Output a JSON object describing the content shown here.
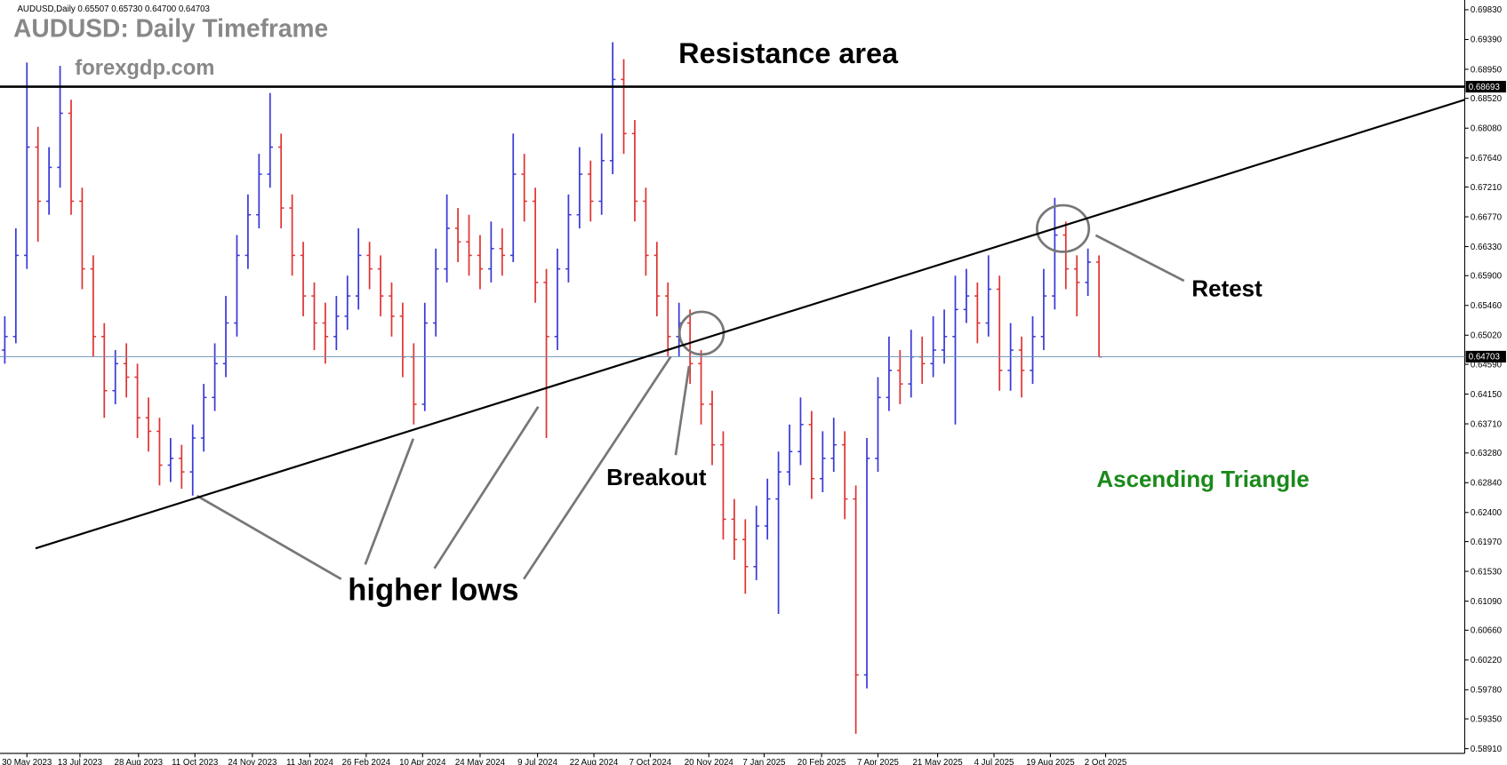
{
  "chart_data": {
    "type": "ohlc",
    "info": "AUDUSD,Daily 0.65507 0.65730 0.64700 0.64703",
    "title": "AUDUSD: Daily Timeframe",
    "subtitle": "forexgdp.com",
    "annotations": {
      "resistance": "Resistance area",
      "retest": "Retest",
      "breakout": "Breakout",
      "higher_lows": "higher lows",
      "pattern": "Ascending Triangle"
    },
    "up_color": "#3a3ad8",
    "down_color": "#e03434",
    "resistance_level": {
      "value": 0.68693,
      "label": "0.68693"
    },
    "current_price": {
      "value": 0.64703,
      "label": "0.64703"
    },
    "trendline": {
      "start": [
        2.78,
        0.6187
      ],
      "end": [
        132.09,
        0.685
      ]
    },
    "xlim": [
      -0.435,
      132.09
    ],
    "ylim": [
      0.5884,
      0.69974
    ],
    "xticks": [
      {
        "value": 2,
        "label": "30 May 2023"
      },
      {
        "value": 6.8,
        "label": "13 Jul 2023"
      },
      {
        "value": 12.1,
        "label": "28 Aug 2023"
      },
      {
        "value": 17.2,
        "label": "11 Oct 2023"
      },
      {
        "value": 22.4,
        "label": "24 Nov 2023"
      },
      {
        "value": 27.6,
        "label": "11 Jan 2024"
      },
      {
        "value": 32.7,
        "label": "26 Feb 2024"
      },
      {
        "value": 37.8,
        "label": "10 Apr 2024"
      },
      {
        "value": 43,
        "label": "24 May 2024"
      },
      {
        "value": 48.2,
        "label": "9 Jul 2024"
      },
      {
        "value": 53.3,
        "label": "22 Aug 2024"
      },
      {
        "value": 58.4,
        "label": "7 Oct 2024"
      },
      {
        "value": 63.7,
        "label": "20 Nov 2024"
      },
      {
        "value": 68.7,
        "label": "7 Jan 2025"
      },
      {
        "value": 73.9,
        "label": "20 Feb 2025"
      },
      {
        "value": 79,
        "label": "7 Apr 2025"
      },
      {
        "value": 84.4,
        "label": "21 May 2025"
      },
      {
        "value": 89.5,
        "label": "4 Jul 2025"
      },
      {
        "value": 94.6,
        "label": "19 Aug 2025"
      },
      {
        "value": 99.6,
        "label": "2 Oct 2025"
      }
    ],
    "yticks": [
      {
        "value": 0.6983,
        "label": "0.69830"
      },
      {
        "value": 0.6939,
        "label": "0.69390"
      },
      {
        "value": 0.6895,
        "label": "0.68950"
      },
      {
        "value": 0.6852,
        "label": "0.68520"
      },
      {
        "value": 0.6808,
        "label": "0.68080"
      },
      {
        "value": 0.6764,
        "label": "0.67640"
      },
      {
        "value": 0.6721,
        "label": "0.67210"
      },
      {
        "value": 0.6677,
        "label": "0.66770"
      },
      {
        "value": 0.6633,
        "label": "0.66330"
      },
      {
        "value": 0.659,
        "label": "0.65900"
      },
      {
        "value": 0.6546,
        "label": "0.65460"
      },
      {
        "value": 0.6502,
        "label": "0.65020"
      },
      {
        "value": 0.6459,
        "label": "0.64590"
      },
      {
        "value": 0.6415,
        "label": "0.64150"
      },
      {
        "value": 0.6371,
        "label": "0.63710"
      },
      {
        "value": 0.6328,
        "label": "0.63280"
      },
      {
        "value": 0.6284,
        "label": "0.62840"
      },
      {
        "value": 0.624,
        "label": "0.62400"
      },
      {
        "value": 0.6197,
        "label": "0.61970"
      },
      {
        "value": 0.6153,
        "label": "0.61530"
      },
      {
        "value": 0.6109,
        "label": "0.61090"
      },
      {
        "value": 0.6066,
        "label": "0.60660"
      },
      {
        "value": 0.6022,
        "label": "0.60220"
      },
      {
        "value": 0.5978,
        "label": "0.59780"
      },
      {
        "value": 0.5935,
        "label": "0.59350"
      },
      {
        "value": 0.5891,
        "label": "0.58910"
      }
    ],
    "ohlc": [
      [
        0.648,
        0.653,
        0.646,
        0.65
      ],
      [
        0.65,
        0.666,
        0.649,
        0.662
      ],
      [
        0.662,
        0.6905,
        0.66,
        0.678
      ],
      [
        0.678,
        0.681,
        0.664,
        0.67
      ],
      [
        0.67,
        0.678,
        0.668,
        0.675
      ],
      [
        0.675,
        0.69,
        0.672,
        0.683
      ],
      [
        0.683,
        0.685,
        0.668,
        0.67
      ],
      [
        0.67,
        0.672,
        0.657,
        0.66
      ],
      [
        0.66,
        0.662,
        0.647,
        0.65
      ],
      [
        0.65,
        0.652,
        0.638,
        0.642
      ],
      [
        0.642,
        0.648,
        0.64,
        0.646
      ],
      [
        0.646,
        0.649,
        0.641,
        0.644
      ],
      [
        0.644,
        0.646,
        0.635,
        0.638
      ],
      [
        0.638,
        0.641,
        0.633,
        0.636
      ],
      [
        0.636,
        0.638,
        0.628,
        0.631
      ],
      [
        0.631,
        0.635,
        0.6285,
        0.632
      ],
      [
        0.632,
        0.634,
        0.6275,
        0.63
      ],
      [
        0.63,
        0.637,
        0.6265,
        0.635
      ],
      [
        0.635,
        0.643,
        0.633,
        0.641
      ],
      [
        0.641,
        0.649,
        0.639,
        0.646
      ],
      [
        0.646,
        0.656,
        0.644,
        0.652
      ],
      [
        0.652,
        0.665,
        0.65,
        0.662
      ],
      [
        0.662,
        0.671,
        0.66,
        0.668
      ],
      [
        0.668,
        0.677,
        0.666,
        0.674
      ],
      [
        0.674,
        0.686,
        0.672,
        0.678
      ],
      [
        0.678,
        0.68,
        0.666,
        0.669
      ],
      [
        0.669,
        0.671,
        0.659,
        0.662
      ],
      [
        0.662,
        0.664,
        0.653,
        0.656
      ],
      [
        0.656,
        0.658,
        0.648,
        0.652
      ],
      [
        0.652,
        0.655,
        0.646,
        0.65
      ],
      [
        0.65,
        0.656,
        0.648,
        0.653
      ],
      [
        0.653,
        0.659,
        0.651,
        0.656
      ],
      [
        0.656,
        0.666,
        0.654,
        0.662
      ],
      [
        0.662,
        0.664,
        0.657,
        0.66
      ],
      [
        0.66,
        0.662,
        0.653,
        0.656
      ],
      [
        0.656,
        0.658,
        0.65,
        0.653
      ],
      [
        0.653,
        0.655,
        0.644,
        0.647
      ],
      [
        0.647,
        0.649,
        0.637,
        0.64
      ],
      [
        0.64,
        0.655,
        0.639,
        0.652
      ],
      [
        0.652,
        0.663,
        0.65,
        0.66
      ],
      [
        0.66,
        0.671,
        0.658,
        0.666
      ],
      [
        0.666,
        0.669,
        0.661,
        0.664
      ],
      [
        0.664,
        0.668,
        0.659,
        0.662
      ],
      [
        0.662,
        0.665,
        0.657,
        0.66
      ],
      [
        0.66,
        0.667,
        0.658,
        0.663
      ],
      [
        0.663,
        0.666,
        0.659,
        0.662
      ],
      [
        0.662,
        0.68,
        0.661,
        0.674
      ],
      [
        0.674,
        0.677,
        0.667,
        0.67
      ],
      [
        0.67,
        0.672,
        0.655,
        0.658
      ],
      [
        0.658,
        0.66,
        0.635,
        0.65
      ],
      [
        0.65,
        0.663,
        0.648,
        0.66
      ],
      [
        0.66,
        0.671,
        0.658,
        0.668
      ],
      [
        0.668,
        0.678,
        0.666,
        0.674
      ],
      [
        0.674,
        0.676,
        0.667,
        0.67
      ],
      [
        0.67,
        0.68,
        0.668,
        0.676
      ],
      [
        0.676,
        0.6935,
        0.674,
        0.688
      ],
      [
        0.688,
        0.691,
        0.677,
        0.68
      ],
      [
        0.68,
        0.682,
        0.667,
        0.67
      ],
      [
        0.67,
        0.672,
        0.659,
        0.662
      ],
      [
        0.662,
        0.664,
        0.653,
        0.656
      ],
      [
        0.656,
        0.658,
        0.647,
        0.65
      ],
      [
        0.65,
        0.655,
        0.647,
        0.652
      ],
      [
        0.652,
        0.654,
        0.643,
        0.646
      ],
      [
        0.646,
        0.648,
        0.637,
        0.64
      ],
      [
        0.64,
        0.642,
        0.631,
        0.634
      ],
      [
        0.634,
        0.636,
        0.62,
        0.623
      ],
      [
        0.623,
        0.626,
        0.617,
        0.62
      ],
      [
        0.62,
        0.623,
        0.612,
        0.616
      ],
      [
        0.616,
        0.625,
        0.614,
        0.622
      ],
      [
        0.622,
        0.629,
        0.62,
        0.626
      ],
      [
        0.626,
        0.633,
        0.609,
        0.63
      ],
      [
        0.63,
        0.637,
        0.628,
        0.633
      ],
      [
        0.633,
        0.641,
        0.631,
        0.637
      ],
      [
        0.637,
        0.639,
        0.626,
        0.629
      ],
      [
        0.629,
        0.636,
        0.627,
        0.632
      ],
      [
        0.632,
        0.638,
        0.63,
        0.634
      ],
      [
        0.634,
        0.636,
        0.623,
        0.626
      ],
      [
        0.626,
        0.628,
        0.5913,
        0.6
      ],
      [
        0.6,
        0.635,
        0.598,
        0.632
      ],
      [
        0.632,
        0.644,
        0.63,
        0.641
      ],
      [
        0.641,
        0.65,
        0.639,
        0.645
      ],
      [
        0.645,
        0.648,
        0.64,
        0.643
      ],
      [
        0.643,
        0.651,
        0.641,
        0.647
      ],
      [
        0.647,
        0.65,
        0.643,
        0.646
      ],
      [
        0.646,
        0.653,
        0.644,
        0.648
      ],
      [
        0.648,
        0.654,
        0.646,
        0.65
      ],
      [
        0.65,
        0.659,
        0.637,
        0.654
      ],
      [
        0.654,
        0.66,
        0.652,
        0.656
      ],
      [
        0.656,
        0.658,
        0.649,
        0.652
      ],
      [
        0.652,
        0.662,
        0.65,
        0.657
      ],
      [
        0.657,
        0.659,
        0.642,
        0.645
      ],
      [
        0.645,
        0.652,
        0.642,
        0.648
      ],
      [
        0.648,
        0.65,
        0.641,
        0.645
      ],
      [
        0.645,
        0.653,
        0.643,
        0.65
      ],
      [
        0.65,
        0.66,
        0.648,
        0.656
      ],
      [
        0.656,
        0.6705,
        0.654,
        0.665
      ],
      [
        0.665,
        0.667,
        0.657,
        0.66
      ],
      [
        0.66,
        0.662,
        0.653,
        0.658
      ],
      [
        0.658,
        0.663,
        0.656,
        0.661
      ],
      [
        0.661,
        0.662,
        0.647,
        0.647
      ]
    ]
  }
}
